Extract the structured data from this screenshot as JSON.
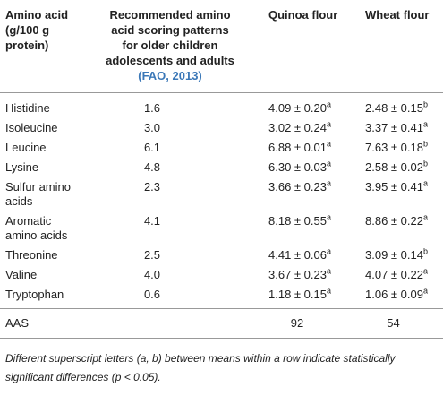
{
  "table": {
    "header": {
      "amino_acid": "Amino acid (g/100 g protein)",
      "pattern": "Recommended amino acid scoring patterns for older children adolescents and adults",
      "pattern_ref": "(FAO, 2013)",
      "quinoa": "Quinoa flour",
      "wheat": "Wheat flour"
    },
    "rows": [
      {
        "name": "Histidine",
        "pattern": "1.6",
        "quinoa": {
          "text": "4.09 ± 0.20",
          "sup": "a"
        },
        "wheat": {
          "text": "2.48 ± 0.15",
          "sup": "b"
        }
      },
      {
        "name": "Isoleucine",
        "pattern": "3.0",
        "quinoa": {
          "text": "3.02 ± 0.24",
          "sup": "a"
        },
        "wheat": {
          "text": "3.37 ± 0.41",
          "sup": "a"
        }
      },
      {
        "name": "Leucine",
        "pattern": "6.1",
        "quinoa": {
          "text": "6.88 ± 0.01",
          "sup": "a"
        },
        "wheat": {
          "text": "7.63 ± 0.18",
          "sup": "b"
        }
      },
      {
        "name": "Lysine",
        "pattern": "4.8",
        "quinoa": {
          "text": "6.30 ± 0.03",
          "sup": "a"
        },
        "wheat": {
          "text": "2.58 ± 0.02",
          "sup": "b"
        }
      },
      {
        "name": "Sulfur amino acids",
        "pattern": "2.3",
        "quinoa": {
          "text": "3.66 ± 0.23",
          "sup": "a"
        },
        "wheat": {
          "text": "3.95 ± 0.41",
          "sup": "a"
        }
      },
      {
        "name": "Aromatic amino acids",
        "pattern": "4.1",
        "quinoa": {
          "text": "8.18 ± 0.55",
          "sup": "a"
        },
        "wheat": {
          "text": "8.86 ± 0.22",
          "sup": "a"
        }
      },
      {
        "name": "Threonine",
        "pattern": "2.5",
        "quinoa": {
          "text": "4.41 ± 0.06",
          "sup": "a"
        },
        "wheat": {
          "text": "3.09 ± 0.14",
          "sup": "b"
        }
      },
      {
        "name": "Valine",
        "pattern": "4.0",
        "quinoa": {
          "text": "3.67 ± 0.23",
          "sup": "a"
        },
        "wheat": {
          "text": "4.07 ± 0.22",
          "sup": "a"
        }
      },
      {
        "name": "Tryptophan",
        "pattern": "0.6",
        "quinoa": {
          "text": "1.18 ± 0.15",
          "sup": "a"
        },
        "wheat": {
          "text": "1.06 ± 0.09",
          "sup": "a"
        }
      }
    ],
    "aas": {
      "name": "AAS",
      "quinoa": "92",
      "wheat": "54"
    },
    "footnote": "Different superscript letters (a, b) between means within a row indicate statistically significant differences (p < 0.05)."
  }
}
